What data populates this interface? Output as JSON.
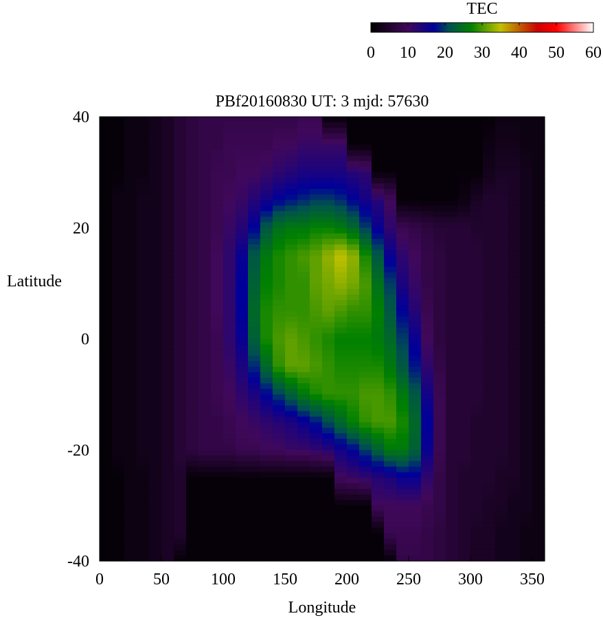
{
  "chart_data": {
    "type": "heatmap",
    "title": "PBf20160830  UT: 3  mjd: 57630",
    "xlabel": "Longitude",
    "ylabel": "Latitude",
    "xlim": [
      0,
      360
    ],
    "ylim": [
      -40,
      40
    ],
    "xticks": [
      "0",
      "50",
      "100",
      "150",
      "200",
      "250",
      "300",
      "350"
    ],
    "yticks": [
      "40",
      "20",
      "0",
      "-20",
      "-40"
    ],
    "colorbar": {
      "label": "TEC",
      "range": [
        0,
        60
      ],
      "ticks": [
        "0",
        "10",
        "20",
        "30",
        "40",
        "50",
        "60"
      ],
      "colormap": [
        {
          "v": 0,
          "color": "#000000"
        },
        {
          "v": 10,
          "color": "#40085a"
        },
        {
          "v": 17,
          "color": "#000099"
        },
        {
          "v": 21,
          "color": "#005050"
        },
        {
          "v": 27,
          "color": "#008000"
        },
        {
          "v": 35,
          "color": "#c0c000"
        },
        {
          "v": 40,
          "color": "#c06000"
        },
        {
          "v": 45,
          "color": "#cc0000"
        },
        {
          "v": 50,
          "color": "#ff0000"
        },
        {
          "v": 60,
          "color": "#ffffff"
        }
      ]
    },
    "lon_centers": [
      5,
      15,
      25,
      35,
      45,
      55,
      65,
      75,
      85,
      95,
      105,
      115,
      125,
      135,
      145,
      155,
      165,
      175,
      185,
      195,
      205,
      215,
      225,
      235,
      245,
      255,
      265,
      275,
      285,
      295,
      305,
      315,
      325,
      335,
      345,
      355
    ],
    "lat_nodes": [
      40,
      35,
      30,
      25,
      20,
      15,
      10,
      5,
      0,
      -5,
      -10,
      -15,
      -20,
      -25,
      -30,
      -35,
      -40
    ],
    "values": [
      [
        1,
        1,
        2,
        2,
        3,
        4,
        6,
        7,
        8,
        8,
        8,
        8,
        8,
        8,
        8,
        8,
        9,
        9,
        1,
        1,
        1,
        1,
        1,
        1,
        1,
        1,
        1,
        1,
        1,
        1,
        1,
        1,
        2,
        2,
        2,
        2
      ],
      [
        1,
        1,
        2,
        2,
        3,
        4,
        6,
        7,
        8,
        8,
        9,
        9,
        9,
        9,
        10,
        10,
        11,
        11,
        11,
        11,
        1,
        1,
        1,
        1,
        1,
        1,
        1,
        1,
        1,
        1,
        1,
        2,
        3,
        3,
        2,
        2
      ],
      [
        1,
        1,
        2,
        2,
        3,
        4,
        6,
        7,
        8,
        9,
        9,
        10,
        10,
        11,
        12,
        13,
        14,
        14,
        14,
        14,
        13,
        12,
        1,
        1,
        1,
        1,
        1,
        1,
        1,
        1,
        1,
        3,
        4,
        4,
        3,
        2
      ],
      [
        1,
        2,
        2,
        3,
        3,
        4,
        6,
        7,
        8,
        9,
        10,
        11,
        13,
        15,
        17,
        18,
        19,
        20,
        20,
        19,
        17,
        15,
        13,
        10,
        1,
        1,
        1,
        1,
        1,
        2,
        4,
        5,
        5,
        4,
        3,
        2
      ],
      [
        1,
        2,
        2,
        3,
        3,
        4,
        6,
        7,
        8,
        9,
        11,
        13,
        17,
        22,
        25,
        26,
        26,
        27,
        27,
        26,
        24,
        20,
        16,
        12,
        9,
        8,
        7,
        6,
        6,
        6,
        5,
        5,
        5,
        4,
        3,
        2
      ],
      [
        1,
        2,
        2,
        3,
        3,
        4,
        6,
        7,
        8,
        10,
        12,
        16,
        22,
        26,
        28,
        29,
        30,
        31,
        33,
        35,
        33,
        28,
        22,
        16,
        12,
        10,
        8,
        7,
        6,
        6,
        6,
        5,
        5,
        4,
        3,
        2
      ],
      [
        1,
        2,
        2,
        3,
        3,
        4,
        6,
        7,
        8,
        10,
        12,
        17,
        23,
        27,
        28,
        29,
        29,
        31,
        32,
        33,
        32,
        30,
        25,
        20,
        14,
        11,
        8,
        7,
        6,
        6,
        6,
        5,
        5,
        4,
        3,
        2
      ],
      [
        1,
        2,
        2,
        3,
        3,
        4,
        6,
        7,
        8,
        10,
        12,
        17,
        24,
        28,
        29,
        29,
        29,
        30,
        31,
        30,
        29,
        29,
        27,
        22,
        17,
        13,
        9,
        7,
        6,
        6,
        6,
        5,
        5,
        4,
        3,
        2
      ],
      [
        1,
        2,
        2,
        3,
        3,
        4,
        6,
        7,
        8,
        9,
        12,
        16,
        23,
        28,
        30,
        31,
        30,
        29,
        28,
        27,
        27,
        27,
        26,
        24,
        20,
        16,
        10,
        7,
        6,
        6,
        6,
        5,
        5,
        4,
        3,
        2
      ],
      [
        1,
        2,
        2,
        3,
        3,
        4,
        6,
        7,
        8,
        9,
        11,
        14,
        19,
        24,
        29,
        31,
        31,
        30,
        29,
        28,
        28,
        28,
        28,
        26,
        22,
        18,
        12,
        8,
        6,
        6,
        6,
        5,
        5,
        4,
        3,
        2
      ],
      [
        1,
        2,
        2,
        3,
        3,
        4,
        6,
        7,
        8,
        9,
        10,
        12,
        14,
        17,
        20,
        23,
        26,
        28,
        29,
        29,
        29,
        30,
        30,
        29,
        26,
        22,
        15,
        9,
        6,
        6,
        6,
        5,
        5,
        4,
        3,
        2
      ],
      [
        1,
        2,
        2,
        3,
        3,
        4,
        6,
        7,
        8,
        8,
        9,
        10,
        11,
        12,
        13,
        14,
        16,
        18,
        21,
        24,
        27,
        29,
        30,
        30,
        28,
        24,
        17,
        9,
        6,
        6,
        5,
        5,
        5,
        4,
        3,
        2
      ],
      [
        1,
        2,
        2,
        3,
        3,
        4,
        6,
        7,
        8,
        8,
        8,
        9,
        9,
        10,
        10,
        11,
        11,
        12,
        13,
        15,
        17,
        20,
        23,
        26,
        26,
        23,
        16,
        9,
        6,
        6,
        5,
        5,
        5,
        4,
        3,
        2
      ],
      [
        1,
        1,
        2,
        2,
        3,
        4,
        5,
        1,
        1,
        1,
        1,
        1,
        1,
        1,
        1,
        1,
        1,
        1,
        1,
        10,
        11,
        12,
        13,
        14,
        16,
        16,
        12,
        8,
        6,
        5,
        5,
        5,
        4,
        4,
        3,
        2
      ],
      [
        1,
        1,
        2,
        2,
        3,
        4,
        5,
        1,
        1,
        1,
        1,
        1,
        1,
        1,
        1,
        1,
        1,
        1,
        1,
        1,
        1,
        1,
        10,
        10,
        10,
        10,
        9,
        8,
        6,
        5,
        5,
        4,
        4,
        3,
        3,
        2
      ],
      [
        1,
        1,
        2,
        2,
        3,
        4,
        5,
        1,
        1,
        1,
        1,
        1,
        1,
        1,
        1,
        1,
        1,
        1,
        1,
        1,
        1,
        1,
        1,
        9,
        9,
        9,
        8,
        7,
        6,
        5,
        4,
        4,
        3,
        3,
        2,
        2
      ],
      [
        1,
        1,
        2,
        2,
        3,
        4,
        1,
        1,
        1,
        1,
        1,
        1,
        1,
        1,
        1,
        1,
        1,
        1,
        1,
        1,
        1,
        1,
        1,
        1,
        8,
        8,
        8,
        7,
        6,
        5,
        4,
        4,
        3,
        3,
        2,
        2
      ]
    ]
  }
}
